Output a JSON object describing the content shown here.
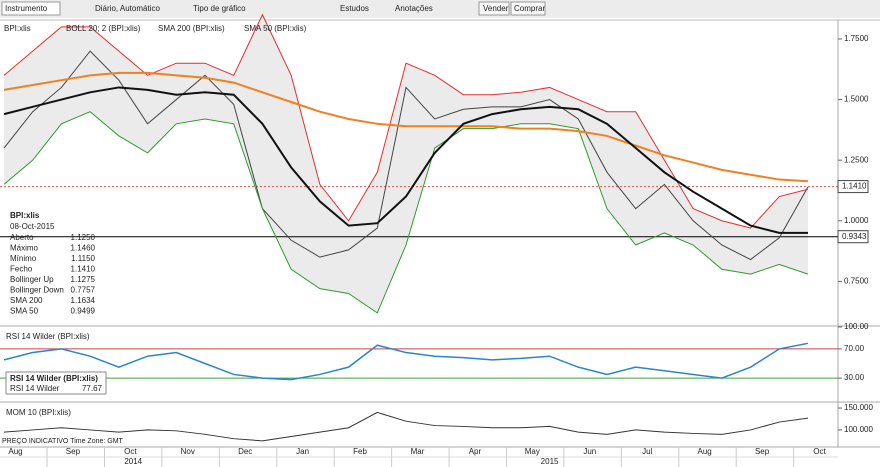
{
  "toolbar": {
    "instrument": "Instrumento",
    "period": "Diário, Automático",
    "chart_type": "Tipo de gráfico",
    "studies": "Estudos",
    "annotations": "Anotações",
    "sell": "Vender",
    "buy": "Comprar"
  },
  "legend": [
    "BPI:xlis",
    "BOLL 20; 2 (BPI:xlis)",
    "SMA 200 (BPI:xlis)",
    "SMA 50 (BPI:xlis)"
  ],
  "info_box": {
    "title": "BPI:xlis",
    "date": "08-Oct-2015",
    "rows": [
      {
        "label": "Aberto",
        "value": "1.1250",
        "color": "#222222"
      },
      {
        "label": "Máximo",
        "value": "1.1460",
        "color": "#222222"
      },
      {
        "label": "Mínimo",
        "value": "1.1150",
        "color": "#222222"
      },
      {
        "label": "Fecho",
        "value": "1.1410",
        "color": "#222222"
      },
      {
        "label": "Bollinger Up",
        "value": "1.1275",
        "color": "#e03030"
      },
      {
        "label": "Bollinger Down",
        "value": "0.7757",
        "color": "#2e9a2e"
      },
      {
        "label": "SMA 200",
        "value": "1.1634",
        "color": "#f08020"
      },
      {
        "label": "SMA 50",
        "value": "0.9499",
        "color": "#222222"
      }
    ]
  },
  "footer": "PREÇO INDICATIVO  Time Zone: GMT",
  "chart_data": [
    {
      "type": "line",
      "title": "BPI:xlis",
      "ylim": [
        0.57,
        1.82
      ],
      "yticks": [
        {
          "value": 1.75,
          "label": "1.7500"
        },
        {
          "value": 1.5,
          "label": "1.5000"
        },
        {
          "value": 1.25,
          "label": "1.2500"
        },
        {
          "value": 1.0,
          "label": "1.0000"
        },
        {
          "value": 0.75,
          "label": "0.7500"
        }
      ],
      "band_fill": "#ebebeb",
      "price_lines": [
        {
          "value": 1.141,
          "label": "1.1410",
          "color": "#e05050"
        },
        {
          "value": 0.9343,
          "label": "0.9343",
          "color": "#000000"
        }
      ],
      "series": [
        {
          "name": "BPI:xlis",
          "color": "#444444",
          "line_width": 1,
          "values": [
            1.3,
            1.45,
            1.55,
            1.7,
            1.58,
            1.4,
            1.5,
            1.6,
            1.48,
            1.05,
            0.92,
            0.85,
            0.88,
            0.97,
            1.55,
            1.42,
            1.46,
            1.47,
            1.47,
            1.5,
            1.42,
            1.2,
            1.05,
            1.15,
            1.0,
            0.9,
            0.84,
            0.93,
            1.14
          ]
        },
        {
          "name": "Bollinger Up",
          "color": "#e03030",
          "line_width": 1,
          "values": [
            1.6,
            1.7,
            1.8,
            1.8,
            1.7,
            1.6,
            1.65,
            1.65,
            1.6,
            1.85,
            1.6,
            1.15,
            1.0,
            1.2,
            1.65,
            1.6,
            1.52,
            1.52,
            1.53,
            1.55,
            1.5,
            1.45,
            1.45,
            1.25,
            1.05,
            1.0,
            0.97,
            1.1,
            1.13
          ]
        },
        {
          "name": "Bollinger Down",
          "color": "#2e9a2e",
          "line_width": 1,
          "values": [
            1.15,
            1.25,
            1.4,
            1.45,
            1.35,
            1.28,
            1.4,
            1.42,
            1.4,
            1.05,
            0.8,
            0.72,
            0.7,
            0.62,
            0.9,
            1.3,
            1.38,
            1.38,
            1.4,
            1.4,
            1.38,
            1.05,
            0.9,
            0.95,
            0.9,
            0.8,
            0.78,
            0.82,
            0.78
          ]
        },
        {
          "name": "SMA 200",
          "color": "#f08020",
          "line_width": 2,
          "values": [
            1.54,
            1.56,
            1.58,
            1.6,
            1.61,
            1.61,
            1.6,
            1.59,
            1.57,
            1.53,
            1.49,
            1.45,
            1.42,
            1.4,
            1.39,
            1.39,
            1.39,
            1.39,
            1.38,
            1.38,
            1.37,
            1.35,
            1.31,
            1.27,
            1.24,
            1.21,
            1.19,
            1.17,
            1.163
          ]
        },
        {
          "name": "SMA 50",
          "color": "#111111",
          "line_width": 2,
          "values": [
            1.44,
            1.47,
            1.5,
            1.53,
            1.55,
            1.54,
            1.52,
            1.53,
            1.52,
            1.4,
            1.22,
            1.08,
            0.98,
            0.99,
            1.1,
            1.28,
            1.4,
            1.44,
            1.46,
            1.47,
            1.46,
            1.4,
            1.3,
            1.2,
            1.12,
            1.05,
            0.98,
            0.95,
            0.95
          ]
        }
      ]
    },
    {
      "type": "line",
      "title": "RSI 14 Wilder (BPI:xlis)",
      "ylim": [
        0,
        100
      ],
      "yticks": [
        {
          "value": 100,
          "label": "100.00"
        },
        {
          "value": 70,
          "label": "70.00"
        },
        {
          "value": 30,
          "label": "30.00"
        }
      ],
      "levels": [
        {
          "value": 70,
          "color": "#d04040"
        },
        {
          "value": 30,
          "color": "#40a040"
        }
      ],
      "series": [
        {
          "name": "RSI 14 Wilder",
          "color": "#2a86c8",
          "line_width": 1.5,
          "values": [
            55,
            65,
            70,
            60,
            45,
            60,
            65,
            50,
            35,
            30,
            28,
            35,
            45,
            75,
            65,
            60,
            58,
            55,
            57,
            60,
            45,
            35,
            45,
            40,
            35,
            30,
            45,
            70,
            77.67
          ]
        }
      ]
    },
    {
      "type": "line",
      "title": "MOM 10 (BPI:xlis)",
      "ylim": [
        61,
        157
      ],
      "yticks": [
        {
          "value": 150,
          "label": "150.000"
        },
        {
          "value": 100,
          "label": "100.000"
        }
      ],
      "categories": [
        "Aug",
        null,
        "Sep",
        null,
        "Oct",
        null,
        "Nov",
        null,
        "Dec",
        null,
        "Jan",
        null,
        "Feb",
        null,
        "Mar",
        null,
        "Apr",
        null,
        "May",
        null,
        "Jun",
        null,
        "Jul",
        null,
        "Aug",
        null,
        "Sep",
        null,
        "Oct"
      ],
      "year_labels": [
        "2014",
        "2015"
      ],
      "series": [
        {
          "name": "MOM 10",
          "color": "#333333",
          "line_width": 1,
          "values": [
            95,
            100,
            105,
            100,
            95,
            100,
            98,
            90,
            80,
            75,
            85,
            95,
            105,
            140,
            120,
            110,
            108,
            105,
            105,
            108,
            95,
            90,
            100,
            95,
            92,
            90,
            100,
            118,
            127
          ]
        }
      ]
    }
  ]
}
